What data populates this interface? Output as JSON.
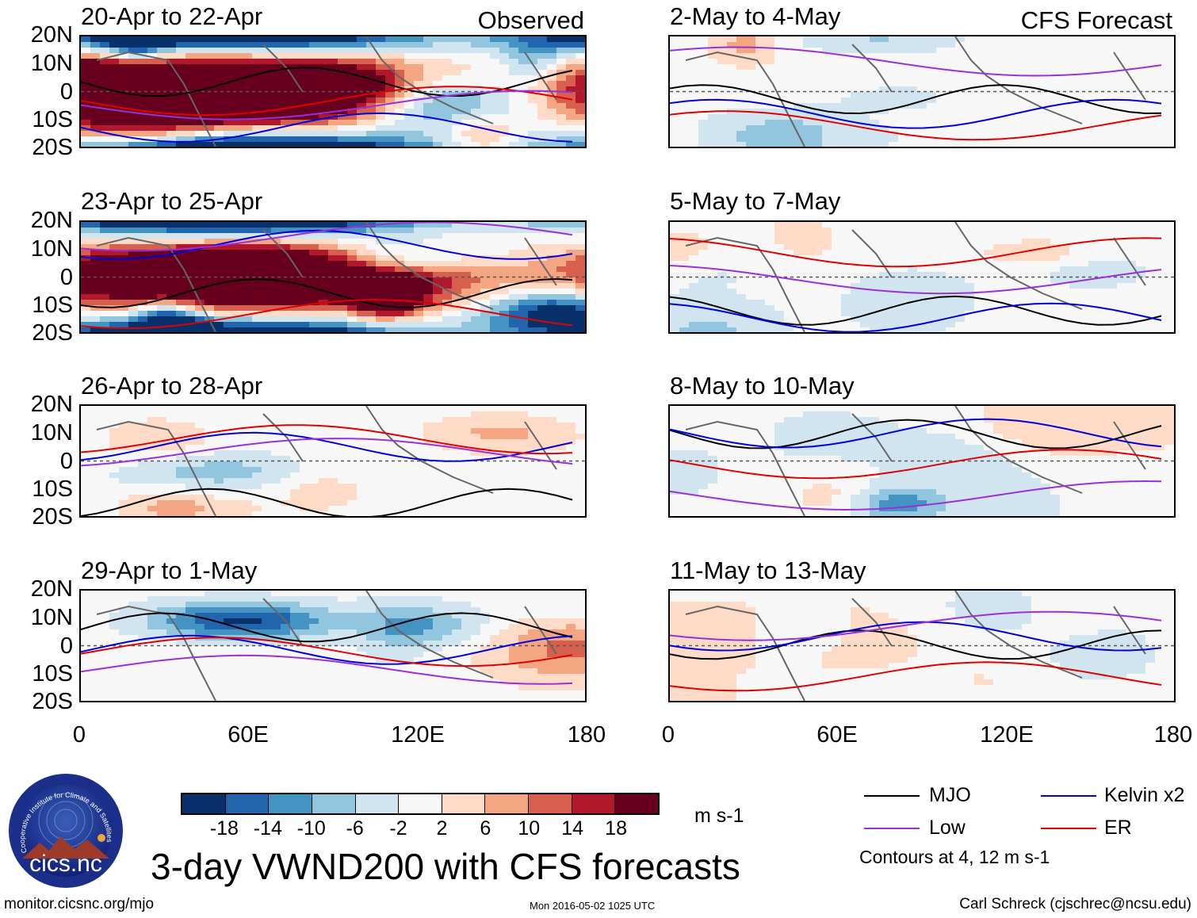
{
  "panels": {
    "p0": {
      "title": "20-Apr to 22-Apr",
      "tag": "Observed",
      "intensity": 2.0
    },
    "p1": {
      "title": "23-Apr to 25-Apr",
      "intensity": 1.8
    },
    "p2": {
      "title": "26-Apr to 28-Apr",
      "intensity": 0.8
    },
    "p3": {
      "title": "29-Apr to 1-May",
      "intensity": 0.9
    },
    "p4": {
      "title": "2-May to 4-May",
      "tag": "CFS Forecast",
      "intensity": 0.6
    },
    "p5": {
      "title": "5-May to 7-May",
      "intensity": 0.55
    },
    "p6": {
      "title": "8-May to 10-May",
      "intensity": 0.5
    },
    "p7": {
      "title": "11-May to 13-May",
      "intensity": 0.45
    }
  },
  "axes": {
    "lat_labels": [
      "20N",
      "10N",
      "0",
      "10S",
      "20S"
    ],
    "lon_labels": [
      "0",
      "60E",
      "120E",
      "180"
    ]
  },
  "colorbar": {
    "colors": [
      "#08306b",
      "#2166ac",
      "#4393c3",
      "#92c5de",
      "#d1e5f0",
      "#f7f7f7",
      "#fddbc7",
      "#f4a582",
      "#d6604d",
      "#b2182b",
      "#67001f"
    ],
    "labels": [
      "-18",
      "-14",
      "-10",
      "-6",
      "-2",
      "2",
      "6",
      "10",
      "14",
      "18"
    ],
    "units": "m s-1"
  },
  "legend": {
    "mjo": {
      "label": "MJO",
      "color": "#000000"
    },
    "kelvin": {
      "label": "Kelvin x2",
      "color": "#0000dd"
    },
    "low": {
      "label": "Low",
      "color": "#9b30d9"
    },
    "er": {
      "label": "ER",
      "color": "#e00000"
    },
    "note": "Contours at 4, 12 m s-1"
  },
  "title": "3-day VWND200 with CFS forecasts",
  "logo": {
    "text": "cics.nc",
    "ring_text": "Cooperative Institute for Climate and Satellites"
  },
  "footer": {
    "url": "monitor.cicsnc.org/mjo",
    "timestamp": "Mon 2016-05-02 1025 UTC",
    "author": "Carl Schreck (cjschrec@ncsu.edu)"
  }
}
